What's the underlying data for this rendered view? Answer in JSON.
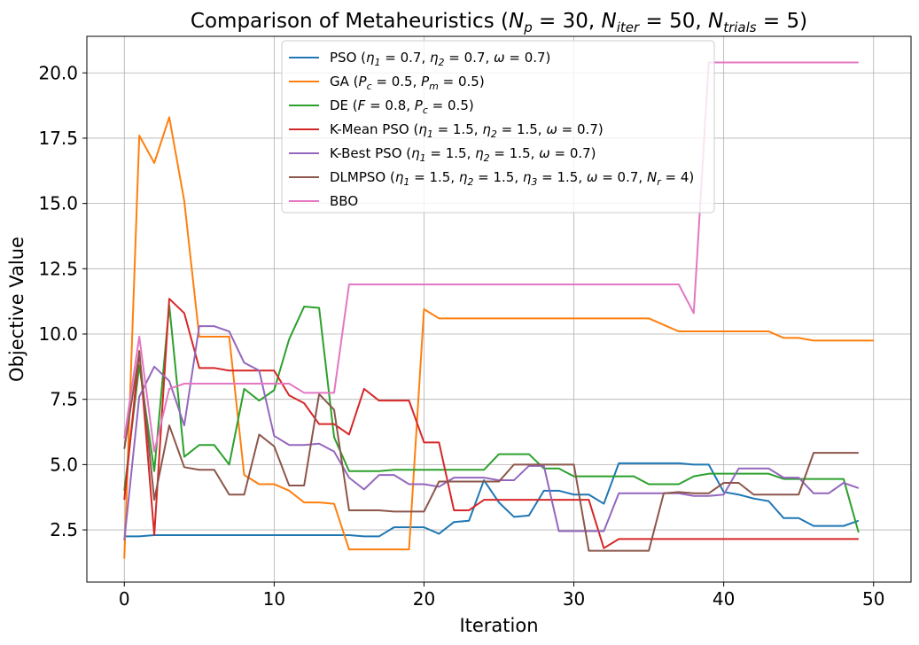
{
  "chart_data": {
    "type": "line",
    "title": "Comparison of Metaheuristics (N_p = 30, N_iter = 50, N_trials = 5)",
    "xlabel": "Iteration",
    "ylabel": "Objective Value",
    "xlim": [
      -2.5,
      52.5
    ],
    "ylim": [
      0.5,
      21.4
    ],
    "xticks": [
      0,
      10,
      20,
      30,
      40,
      50
    ],
    "yticks": [
      2.5,
      5.0,
      7.5,
      10.0,
      12.5,
      15.0,
      17.5,
      20.0
    ],
    "grid": true,
    "legend_position": "top-center",
    "series": [
      {
        "name": "PSO (η1 = 0.7, η2 = 0.7, ω = 0.7)",
        "color": "#1f77b4",
        "x": [
          0,
          1,
          2,
          3,
          4,
          5,
          6,
          7,
          8,
          9,
          10,
          11,
          12,
          13,
          14,
          15,
          16,
          17,
          18,
          19,
          20,
          21,
          22,
          23,
          24,
          25,
          26,
          27,
          28,
          29,
          30,
          31,
          32,
          33,
          34,
          35,
          36,
          37,
          38,
          39,
          40,
          41,
          42,
          43,
          44,
          45,
          46,
          47,
          48,
          49
        ],
        "values": [
          2.25,
          2.25,
          2.3,
          2.3,
          2.3,
          2.3,
          2.3,
          2.3,
          2.3,
          2.3,
          2.3,
          2.3,
          2.3,
          2.3,
          2.3,
          2.3,
          2.25,
          2.25,
          2.6,
          2.6,
          2.6,
          2.35,
          2.8,
          2.85,
          4.4,
          3.55,
          3.0,
          3.05,
          4.0,
          4.0,
          3.85,
          3.85,
          3.5,
          5.05,
          5.05,
          5.05,
          5.05,
          5.05,
          5.0,
          5.0,
          3.95,
          3.85,
          3.7,
          3.6,
          2.95,
          2.95,
          2.65,
          2.65,
          2.65,
          2.85
        ]
      },
      {
        "name": "GA (Pc = 0.5, Pm = 0.5)",
        "color": "#ff7f0e",
        "x": [
          0,
          1,
          2,
          3,
          4,
          5,
          6,
          7,
          8,
          9,
          10,
          11,
          12,
          13,
          14,
          15,
          16,
          17,
          18,
          19,
          20,
          21,
          22,
          23,
          24,
          25,
          26,
          27,
          28,
          29,
          30,
          31,
          32,
          33,
          34,
          35,
          36,
          37,
          38,
          39,
          40,
          41,
          42,
          43,
          44,
          45,
          46,
          47,
          48,
          49,
          50
        ],
        "values": [
          1.4,
          17.6,
          16.55,
          18.3,
          15.1,
          9.9,
          9.9,
          9.9,
          4.6,
          4.25,
          4.25,
          4.0,
          3.55,
          3.55,
          3.5,
          1.75,
          1.75,
          1.75,
          1.75,
          1.75,
          10.95,
          10.6,
          10.6,
          10.6,
          10.6,
          10.6,
          10.6,
          10.6,
          10.6,
          10.6,
          10.6,
          10.6,
          10.6,
          10.6,
          10.6,
          10.6,
          10.35,
          10.1,
          10.1,
          10.1,
          10.1,
          10.1,
          10.1,
          10.1,
          9.85,
          9.85,
          9.75,
          9.75,
          9.75,
          9.75,
          9.75
        ]
      },
      {
        "name": "DE (F = 0.8, Pc = 0.5)",
        "color": "#2ca02c",
        "x": [
          0,
          1,
          2,
          3,
          4,
          5,
          6,
          7,
          8,
          9,
          10,
          11,
          12,
          13,
          14,
          15,
          16,
          17,
          18,
          19,
          20,
          21,
          22,
          23,
          24,
          25,
          26,
          27,
          28,
          29,
          30,
          31,
          32,
          33,
          34,
          35,
          36,
          37,
          38,
          39,
          40,
          41,
          42,
          43,
          44,
          45,
          46,
          47,
          48,
          49
        ],
        "values": [
          4.0,
          8.8,
          4.75,
          11.1,
          5.3,
          5.75,
          5.75,
          5.0,
          7.9,
          7.45,
          7.85,
          9.8,
          11.05,
          11.0,
          6.05,
          4.75,
          4.75,
          4.75,
          4.8,
          4.8,
          4.8,
          4.8,
          4.8,
          4.8,
          4.8,
          5.4,
          5.4,
          5.4,
          4.85,
          4.85,
          4.55,
          4.55,
          4.55,
          4.55,
          4.55,
          4.25,
          4.25,
          4.25,
          4.55,
          4.65,
          4.65,
          4.65,
          4.65,
          4.65,
          4.45,
          4.45,
          4.45,
          4.45,
          4.45,
          2.4
        ]
      },
      {
        "name": "K-Mean PSO (η1 = 1.5, η2 = 1.5, ω = 0.7)",
        "color": "#d62728",
        "x": [
          0,
          1,
          2,
          3,
          4,
          5,
          6,
          7,
          8,
          9,
          10,
          11,
          12,
          13,
          14,
          15,
          16,
          17,
          18,
          19,
          20,
          21,
          22,
          23,
          24,
          25,
          26,
          27,
          28,
          29,
          30,
          31,
          32,
          33,
          34,
          35,
          36,
          37,
          38,
          39,
          40,
          41,
          42,
          43,
          44,
          45,
          46,
          47,
          48,
          49
        ],
        "values": [
          3.65,
          9.35,
          2.3,
          11.35,
          10.8,
          8.7,
          8.7,
          8.6,
          8.6,
          8.6,
          8.6,
          7.65,
          7.35,
          6.55,
          6.55,
          6.15,
          7.9,
          7.45,
          7.45,
          7.45,
          5.85,
          5.85,
          3.25,
          3.25,
          3.65,
          3.65,
          3.65,
          3.65,
          3.65,
          3.65,
          3.65,
          3.65,
          1.8,
          2.15,
          2.15,
          2.15,
          2.15,
          2.15,
          2.15,
          2.15,
          2.15,
          2.15,
          2.15,
          2.15,
          2.15,
          2.15,
          2.15,
          2.15,
          2.15,
          2.15
        ]
      },
      {
        "name": "K-Best PSO (η1 = 1.5, η2 = 1.5, ω = 0.7)",
        "color": "#9467bd",
        "x": [
          0,
          1,
          2,
          3,
          4,
          5,
          6,
          7,
          8,
          9,
          10,
          11,
          12,
          13,
          14,
          15,
          16,
          17,
          18,
          19,
          20,
          21,
          22,
          23,
          24,
          25,
          26,
          27,
          28,
          29,
          30,
          31,
          32,
          33,
          34,
          35,
          36,
          37,
          38,
          39,
          40,
          41,
          42,
          43,
          44,
          45,
          46,
          47,
          48,
          49
        ],
        "values": [
          2.1,
          7.6,
          8.75,
          8.2,
          6.5,
          10.3,
          10.3,
          10.1,
          8.9,
          8.6,
          6.1,
          5.75,
          5.75,
          5.8,
          5.5,
          4.5,
          4.05,
          4.6,
          4.6,
          4.25,
          4.25,
          4.15,
          4.5,
          4.5,
          4.5,
          4.4,
          4.4,
          4.95,
          4.95,
          2.45,
          2.45,
          2.45,
          2.45,
          3.9,
          3.9,
          3.9,
          3.9,
          3.9,
          3.8,
          3.8,
          3.85,
          4.85,
          4.85,
          4.85,
          4.5,
          4.5,
          3.9,
          3.9,
          4.3,
          4.1
        ]
      },
      {
        "name": "DLMPSO (η1 = 1.5, η2 = 1.5, η3 = 1.5, ω = 0.7, Nr = 4)",
        "color": "#8c564b",
        "x": [
          0,
          1,
          2,
          3,
          4,
          5,
          6,
          7,
          8,
          9,
          10,
          11,
          12,
          13,
          14,
          15,
          16,
          17,
          18,
          19,
          20,
          21,
          22,
          23,
          24,
          25,
          26,
          27,
          28,
          29,
          30,
          31,
          32,
          33,
          34,
          35,
          36,
          37,
          38,
          39,
          40,
          41,
          42,
          43,
          44,
          45,
          46,
          47,
          48,
          49
        ],
        "values": [
          5.6,
          9.3,
          3.65,
          6.5,
          4.9,
          4.8,
          4.8,
          3.85,
          3.85,
          6.15,
          5.7,
          4.2,
          4.2,
          7.7,
          7.1,
          3.25,
          3.25,
          3.25,
          3.2,
          3.2,
          3.2,
          4.35,
          4.35,
          4.35,
          4.35,
          4.35,
          5.0,
          5.0,
          5.0,
          5.0,
          5.0,
          1.7,
          1.7,
          1.7,
          1.7,
          1.7,
          3.9,
          3.95,
          3.9,
          3.9,
          4.3,
          4.3,
          3.85,
          3.85,
          3.85,
          3.85,
          5.45,
          5.45,
          5.45,
          5.45
        ]
      },
      {
        "name": "BBO",
        "color": "#e377c2",
        "x": [
          0,
          1,
          2,
          3,
          4,
          5,
          6,
          7,
          8,
          9,
          10,
          11,
          12,
          13,
          14,
          15,
          16,
          17,
          18,
          19,
          20,
          21,
          22,
          23,
          24,
          25,
          26,
          27,
          28,
          29,
          30,
          31,
          32,
          33,
          34,
          35,
          36,
          37,
          38,
          39,
          40,
          41,
          42,
          43,
          44,
          45,
          46,
          47,
          48,
          49
        ],
        "values": [
          6.0,
          9.9,
          5.5,
          7.9,
          8.1,
          8.1,
          8.1,
          8.1,
          8.1,
          8.1,
          8.1,
          8.1,
          7.75,
          7.75,
          7.75,
          11.9,
          11.9,
          11.9,
          11.9,
          11.9,
          11.9,
          11.9,
          11.9,
          11.9,
          11.9,
          11.9,
          11.9,
          11.9,
          11.9,
          11.9,
          11.9,
          11.9,
          11.9,
          11.9,
          11.9,
          11.9,
          11.9,
          11.9,
          10.8,
          20.4,
          20.4,
          20.4,
          20.4,
          20.4,
          20.4,
          20.4,
          20.4,
          20.4,
          20.4,
          20.4
        ]
      }
    ]
  }
}
